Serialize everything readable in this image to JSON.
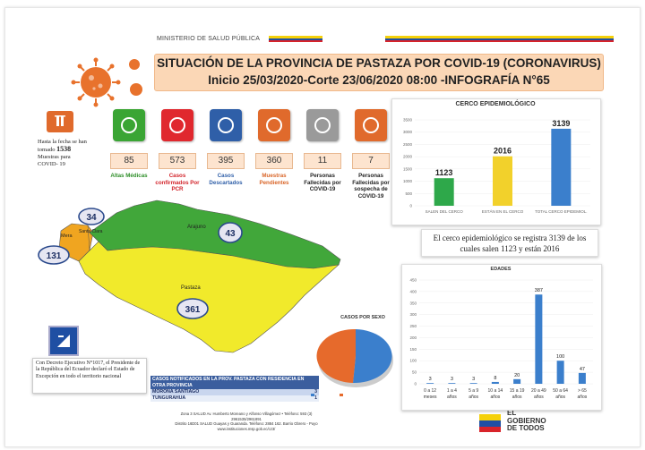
{
  "header": {
    "ministry": "MINISTERIO DE SALUD PÚBLICA",
    "title_line1": "SITUACIÓN DE LA PROVINCIA DE PASTAZA POR COVID-19 (CORONAVIRUS)",
    "title_line2": "Inicio 25/03/2020-Corte 23/06/2020 08:00 -INFOGRAFÍA N°65"
  },
  "samples": {
    "text1": "Hasta la fecha se han",
    "text2": "tomado",
    "count": "1538",
    "text3": "Muestras para",
    "text4": "COVID- 19"
  },
  "stats": [
    {
      "value": "85",
      "caption": "Altas Médicas",
      "color": "#3aa534",
      "icon": "medical-discharge-icon",
      "caption_color": "#2f8f2a"
    },
    {
      "value": "573",
      "caption": "Casos confirmados Por PCR",
      "color": "#e0282e",
      "icon": "check-icon",
      "caption_color": "#d2232a"
    },
    {
      "value": "395",
      "caption": "Casos Descartados",
      "color": "#2f5fa8",
      "icon": "minus-icon",
      "caption_color": "#2f5fa8"
    },
    {
      "value": "360",
      "caption": "Muestras Pendientes",
      "color": "#e06a2c",
      "icon": "lab-sample-icon",
      "caption_color": "#d96528"
    },
    {
      "value": "11",
      "caption": "Personas Fallecidas por COVID-19",
      "color": "#9a9a9a",
      "icon": "mourning-ribbon-icon",
      "caption_color": "#222"
    },
    {
      "value": "7",
      "caption": "Personas Fallecidas por sospecha de COVID-19",
      "color": "#e06a2c",
      "icon": "people-icon",
      "caption_color": "#222"
    }
  ],
  "map": {
    "labels": {
      "arajuno": "Arajuno",
      "pastaza": "Pastaza",
      "mera": "Mera",
      "santa_clara": "Santa Clara"
    },
    "counts": {
      "santa_clara": "34",
      "mera": "131",
      "arajuno": "43",
      "pastaza": "361"
    }
  },
  "cerco": {
    "title": "CERCO  EPIDEMIOLÓGICO",
    "statement": "El cerco epidemiológico se registra 3139 de los cuales salen 1123  y están 2016"
  },
  "sexo": {
    "title": "CASOS POR SEXO"
  },
  "edades": {
    "title": "EDADES"
  },
  "decree": "Con Decreto Ejecutivo N°1017, el Presidente de la República del Ecuador declaró el Estado de Excepción en todo el territorio nacional",
  "notified": {
    "header": "CASOS NOTIFICADOS EN LA PROV. PASTAZA CON RESIDENCIA EN OTRA PROVINCIA",
    "rows": [
      {
        "name": "MORONA SANTIAGO",
        "value": "3"
      },
      {
        "name": "TUNGURAHUA",
        "value": "1"
      }
    ]
  },
  "footer": {
    "line1": "Zona 3 SALUD Av. Humberto Moreano y Alfonso Villagómez • Teléfono: 593 (3)",
    "line2": "2961535/2961891",
    "line3": "Distrito 16D01 SALUD Guayas y Guaranda. Teléfono: 2884 162. Barrio Obrero - Puyo",
    "line4": "www.instituciones.msp.gob.ec/cz3/"
  },
  "gov": {
    "line1": "EL",
    "line2": "GOBIERNO",
    "line3": "DE TODOS"
  },
  "chart_data": [
    {
      "type": "bar",
      "title": "CERCO  EPIDEMIOLÓGICO",
      "categories": [
        "SALEN DEL CERCO",
        "ESTÁN EN EL CERCO",
        "TOTAL CERCO EPIDEMIOL."
      ],
      "values": [
        1123,
        2016,
        3139
      ],
      "colors": [
        "#2ea84a",
        "#f2d12b",
        "#3b7fcc"
      ],
      "yticks": [
        0,
        500,
        1000,
        1500,
        2000,
        2500,
        3000,
        3500
      ],
      "ylim": [
        0,
        3500
      ]
    },
    {
      "type": "pie",
      "title": "CASOS POR SEXO",
      "colors": [
        "#3b7fcc",
        "#e66a2c"
      ]
    },
    {
      "type": "bar",
      "title": "EDADES",
      "categories": [
        [
          "0 a 12",
          "meses"
        ],
        [
          "1 a 4",
          "años"
        ],
        [
          "5 a 9",
          "años"
        ],
        [
          "10 a 14",
          "años"
        ],
        [
          "15 a 19",
          "años"
        ],
        [
          "20 a 49",
          "años"
        ],
        [
          "50 a 64",
          "años"
        ],
        [
          "> 65",
          "años"
        ]
      ],
      "values": [
        3,
        3,
        3,
        8,
        20,
        387,
        100,
        47
      ],
      "color": "#3b7fcc",
      "yticks": [
        0,
        50,
        100,
        150,
        200,
        250,
        300,
        350,
        400,
        450
      ],
      "ylim": [
        0,
        450
      ]
    }
  ]
}
